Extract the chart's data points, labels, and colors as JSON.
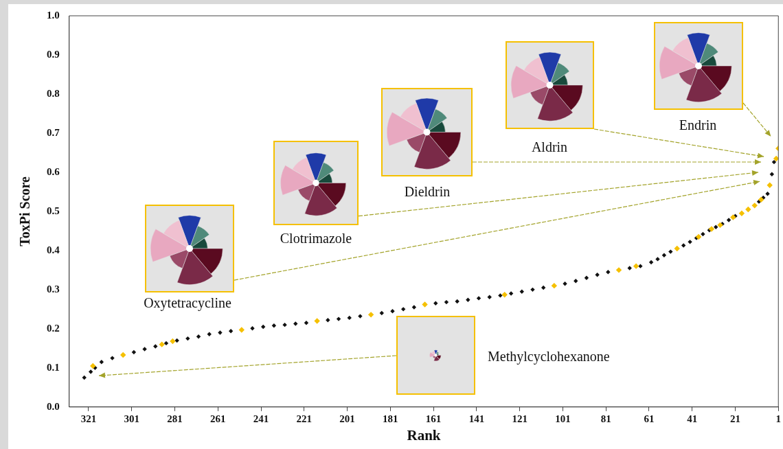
{
  "chart_data": {
    "type": "scatter",
    "xlabel": "Rank",
    "ylabel": "ToxPi Score",
    "xlim": [
      330,
      1
    ],
    "xticks": [
      321,
      301,
      281,
      261,
      241,
      221,
      201,
      181,
      161,
      141,
      121,
      101,
      81,
      61,
      41,
      21,
      1
    ],
    "ylim": [
      0,
      1
    ],
    "yticks": [
      {
        "value": 0,
        "label": "0.0"
      },
      0.1,
      0.2,
      0.3,
      0.4,
      0.5,
      0.6,
      0.7,
      0.8,
      0.9,
      {
        "value": 1,
        "label": "1.0"
      }
    ],
    "grid": false,
    "legend": false,
    "marker": "diamond",
    "series": [
      {
        "color": "#111111",
        "x": [
          323,
          320,
          318,
          315,
          310,
          300,
          295,
          290,
          285,
          280,
          275,
          270,
          265,
          260,
          255,
          245,
          240,
          235,
          230,
          225,
          220,
          210,
          205,
          200,
          195,
          185,
          180,
          175,
          170,
          160,
          155,
          150,
          145,
          140,
          135,
          130,
          125,
          120,
          115,
          110,
          100,
          95,
          90,
          85,
          80,
          70,
          65,
          60,
          57,
          54,
          51,
          45,
          42,
          39,
          36,
          33,
          30,
          27,
          24,
          21,
          10,
          8,
          6,
          4,
          3
        ],
        "values": [
          0.075,
          0.09,
          0.1,
          0.115,
          0.125,
          0.14,
          0.148,
          0.155,
          0.163,
          0.17,
          0.175,
          0.18,
          0.186,
          0.19,
          0.194,
          0.201,
          0.205,
          0.208,
          0.21,
          0.213,
          0.215,
          0.222,
          0.225,
          0.228,
          0.232,
          0.24,
          0.245,
          0.25,
          0.255,
          0.265,
          0.268,
          0.27,
          0.274,
          0.278,
          0.281,
          0.285,
          0.29,
          0.295,
          0.3,
          0.305,
          0.315,
          0.322,
          0.33,
          0.338,
          0.345,
          0.355,
          0.36,
          0.37,
          0.378,
          0.388,
          0.397,
          0.413,
          0.422,
          0.432,
          0.442,
          0.452,
          0.46,
          0.468,
          0.478,
          0.488,
          0.525,
          0.535,
          0.545,
          0.595,
          0.626
        ]
      },
      {
        "color": "#f5c000",
        "x": [
          319,
          305,
          287,
          282,
          250,
          215,
          190,
          165,
          128,
          105,
          75,
          67,
          48,
          38,
          32,
          28,
          22,
          18,
          15,
          12,
          9,
          5,
          2,
          1
        ],
        "values": [
          0.105,
          0.133,
          0.16,
          0.168,
          0.197,
          0.22,
          0.236,
          0.262,
          0.287,
          0.31,
          0.35,
          0.36,
          0.405,
          0.435,
          0.455,
          0.465,
          0.485,
          0.495,
          0.505,
          0.515,
          0.53,
          0.567,
          0.635,
          0.661
        ]
      }
    ],
    "annotations": [
      "Oxytetracycline",
      "Clotrimazole",
      "Dieldrin",
      "Aldrin",
      "Endrin",
      "Methylcyclohexanone"
    ]
  }
}
